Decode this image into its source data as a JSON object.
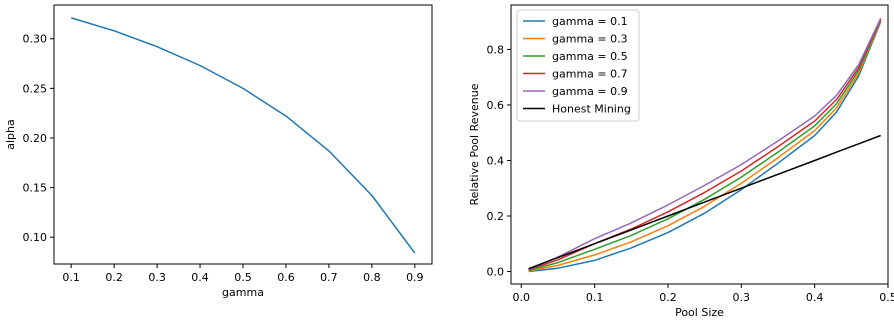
{
  "chart_data": [
    {
      "type": "line",
      "title": "",
      "xlabel": "gamma",
      "ylabel": "alpha",
      "xlim": [
        0.06,
        0.94
      ],
      "ylim": [
        0.073,
        0.334
      ],
      "xticks": [
        "0.1",
        "0.2",
        "0.3",
        "0.4",
        "0.5",
        "0.6",
        "0.7",
        "0.8",
        "0.9"
      ],
      "yticks": [
        "0.10",
        "0.15",
        "0.20",
        "0.25",
        "0.30"
      ],
      "grid": false,
      "series": [
        {
          "color": "#1f77b4",
          "x": [
            0.1,
            0.2,
            0.3,
            0.4,
            0.5,
            0.6,
            0.7,
            0.8,
            0.9
          ],
          "y": [
            0.321,
            0.308,
            0.292,
            0.273,
            0.25,
            0.222,
            0.187,
            0.142,
            0.084
          ]
        }
      ]
    },
    {
      "type": "line",
      "title": "",
      "xlabel": "Pool Size",
      "ylabel": "Relative Pool Revenue",
      "xlim": [
        -0.014,
        0.5
      ],
      "ylim": [
        -0.045,
        0.96
      ],
      "xticks": [
        "0.0",
        "0.1",
        "0.2",
        "0.3",
        "0.4",
        "0.5"
      ],
      "yticks": [
        "0.0",
        "0.2",
        "0.4",
        "0.6",
        "0.8"
      ],
      "grid": false,
      "legend": "top-left",
      "x": [
        0.01,
        0.05,
        0.1,
        0.15,
        0.2,
        0.25,
        0.3,
        0.35,
        0.4,
        0.43,
        0.46,
        0.49
      ],
      "series": [
        {
          "name": "gamma = 0.1",
          "color": "#1f77b4",
          "values": [
            0.0,
            0.012,
            0.04,
            0.085,
            0.14,
            0.21,
            0.295,
            0.39,
            0.49,
            0.575,
            0.705,
            0.9
          ]
        },
        {
          "name": "gamma = 0.3",
          "color": "#ff7f0e",
          "values": [
            0.002,
            0.022,
            0.06,
            0.107,
            0.165,
            0.235,
            0.318,
            0.41,
            0.508,
            0.59,
            0.715,
            0.902
          ]
        },
        {
          "name": "gamma = 0.5",
          "color": "#2ca02c",
          "values": [
            0.004,
            0.032,
            0.08,
            0.13,
            0.19,
            0.26,
            0.34,
            0.43,
            0.525,
            0.605,
            0.725,
            0.905
          ]
        },
        {
          "name": "gamma = 0.7",
          "color": "#d62728",
          "values": [
            0.006,
            0.042,
            0.1,
            0.153,
            0.215,
            0.285,
            0.362,
            0.45,
            0.542,
            0.62,
            0.735,
            0.908
          ]
        },
        {
          "name": "gamma = 0.9",
          "color": "#9467bd",
          "values": [
            0.008,
            0.052,
            0.118,
            0.175,
            0.24,
            0.31,
            0.385,
            0.47,
            0.56,
            0.635,
            0.745,
            0.912
          ]
        },
        {
          "name": "Honest Mining",
          "color": "#000000",
          "values": [
            0.01,
            0.05,
            0.1,
            0.15,
            0.2,
            0.25,
            0.3,
            0.35,
            0.4,
            0.43,
            0.46,
            0.49
          ]
        }
      ]
    }
  ]
}
